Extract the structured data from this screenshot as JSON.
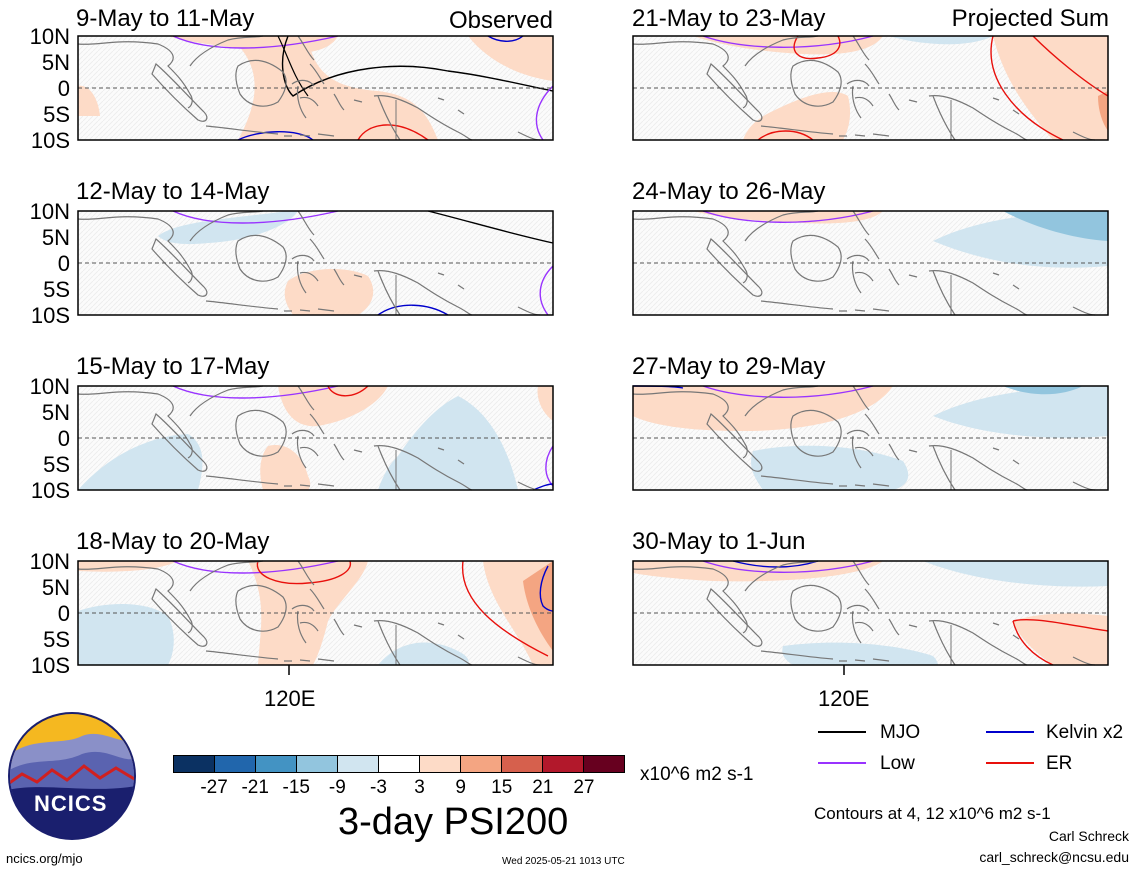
{
  "left_column_label": "Observed",
  "right_column_label": "Projected Sum",
  "latitude_labels": [
    "10N",
    "5N",
    "0",
    "5S",
    "10S"
  ],
  "longitude_label": "120E",
  "panels": [
    {
      "title": "9-May to 11-May"
    },
    {
      "title": "12-May to 14-May"
    },
    {
      "title": "15-May to 17-May"
    },
    {
      "title": "18-May to 20-May"
    },
    {
      "title": "21-May to 23-May"
    },
    {
      "title": "24-May to 26-May"
    },
    {
      "title": "27-May to 29-May"
    },
    {
      "title": "30-May to 1-Jun"
    }
  ],
  "colorbar": {
    "ticks": [
      "-27",
      "-21",
      "-15",
      "-9",
      "-3",
      "3",
      "9",
      "15",
      "21",
      "27"
    ],
    "colors": [
      "#0b3162",
      "#2166ac",
      "#4393c3",
      "#92c5de",
      "#d1e5f0",
      "#ffffff",
      "#fddbc7",
      "#f4a582",
      "#d6604d",
      "#b2182b",
      "#67001f"
    ],
    "units": "x10^6 m2 s-1"
  },
  "plot_title": "3-day PSI200",
  "legend": [
    {
      "label": "MJO",
      "color": "#000000"
    },
    {
      "label": "Kelvin x2",
      "color": "#0000cc"
    },
    {
      "label": "Low",
      "color": "#9933ff"
    },
    {
      "label": "ER",
      "color": "#e8100c"
    }
  ],
  "contour_note": "Contours at 4, 12 x10^6 m2 s-1",
  "author": "Carl Schreck",
  "email": "carl_schreck@ncsu.edu",
  "website": "ncics.org/mjo",
  "timestamp": "Wed 2025-05-21 1013 UTC",
  "logo_text": "NCICS"
}
